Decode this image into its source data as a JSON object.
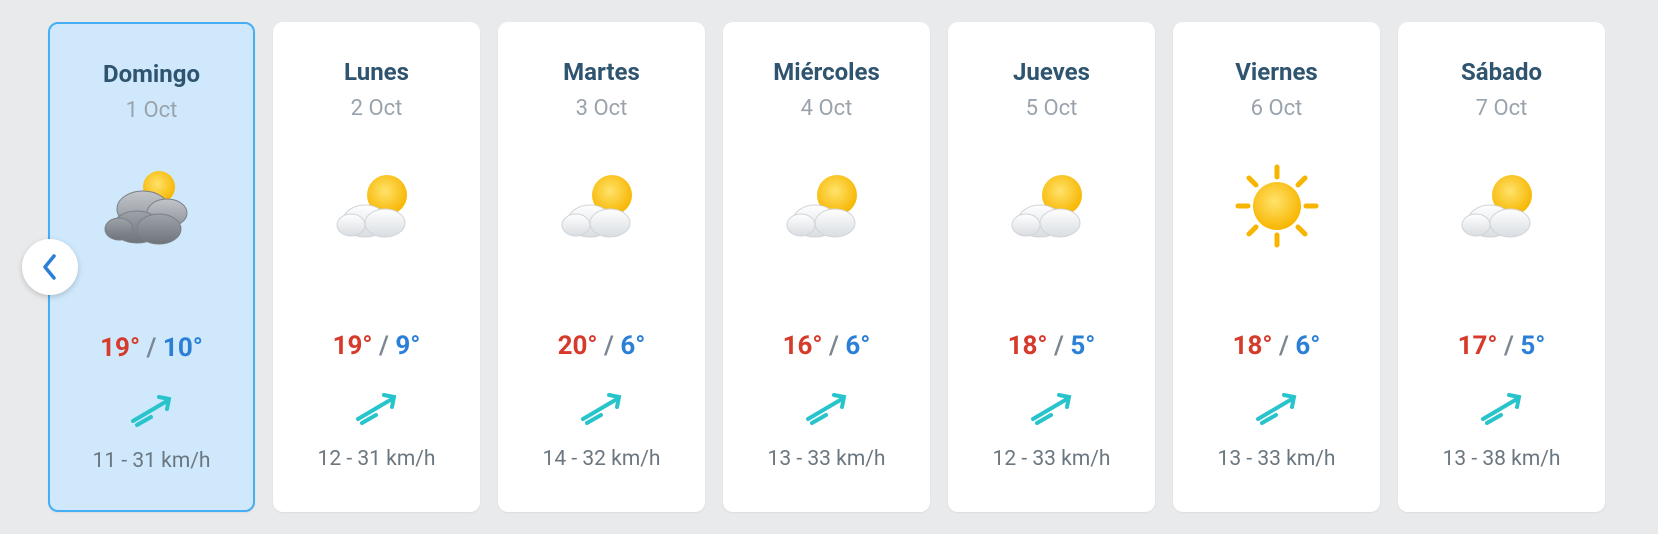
{
  "colors": {
    "background": "#e9eaec",
    "card_bg": "#ffffff",
    "selected_bg": "#cfe8fb",
    "selected_border": "#45aef5",
    "day_name": "#2f546f",
    "day_date": "#9aa3ab",
    "temp_high": "#d63a2b",
    "temp_low": "#2b7fd6",
    "temp_sep": "#7a8691",
    "wind_text": "#6b7780",
    "wind_arrow": "#28c4cc",
    "prev_arrow": "#2b7fd6"
  },
  "days": [
    {
      "name": "Domingo",
      "date": "1 Oct",
      "icon": "cloudy-sun",
      "high": "19°",
      "low": "10°",
      "wind": "11 - 31 km/h",
      "selected": true
    },
    {
      "name": "Lunes",
      "date": "2 Oct",
      "icon": "partly-sunny",
      "high": "19°",
      "low": "9°",
      "wind": "12 - 31 km/h",
      "selected": false
    },
    {
      "name": "Martes",
      "date": "3 Oct",
      "icon": "partly-sunny",
      "high": "20°",
      "low": "6°",
      "wind": "14 - 32 km/h",
      "selected": false
    },
    {
      "name": "Miércoles",
      "date": "4 Oct",
      "icon": "partly-sunny",
      "high": "16°",
      "low": "6°",
      "wind": "13 - 33 km/h",
      "selected": false
    },
    {
      "name": "Jueves",
      "date": "5 Oct",
      "icon": "partly-sunny",
      "high": "18°",
      "low": "5°",
      "wind": "12 - 33 km/h",
      "selected": false
    },
    {
      "name": "Viernes",
      "date": "6 Oct",
      "icon": "sunny",
      "high": "18°",
      "low": "6°",
      "wind": "13 - 33 km/h",
      "selected": false
    },
    {
      "name": "Sábado",
      "date": "7 Oct",
      "icon": "partly-sunny",
      "high": "17°",
      "low": "5°",
      "wind": "13 - 38 km/h",
      "selected": false
    }
  ]
}
